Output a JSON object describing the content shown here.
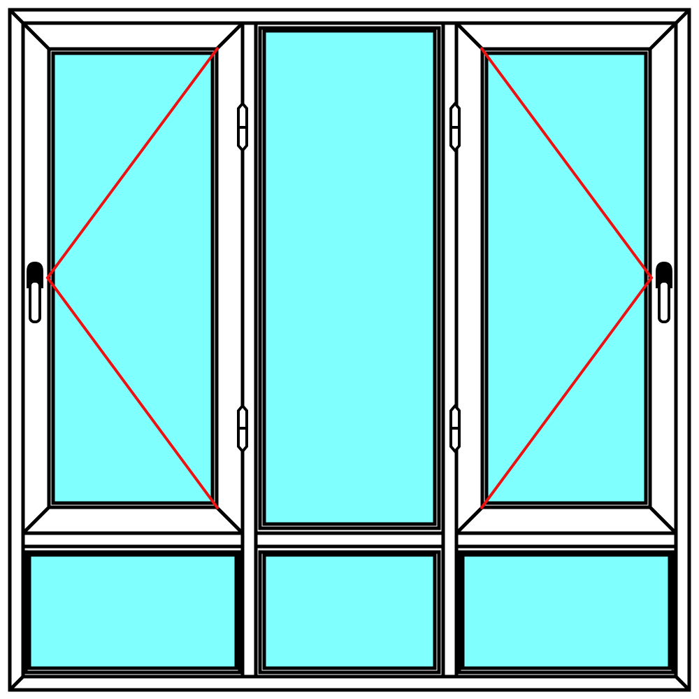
{
  "diagram": {
    "type": "window-frame-drawing",
    "colors": {
      "frame": "#ffffff",
      "outline": "#000000",
      "glass": "#80ffff",
      "opening_indicator": "#ee1111"
    },
    "sashes": [
      {
        "id": "left",
        "type": "casement",
        "hinge_side": "right",
        "handle_side": "left"
      },
      {
        "id": "center",
        "type": "fixed"
      },
      {
        "id": "right",
        "type": "casement",
        "hinge_side": "left",
        "handle_side": "right"
      }
    ],
    "lower_panels": [
      {
        "id": "lower-left",
        "type": "fixed"
      },
      {
        "id": "lower-center",
        "type": "fixed"
      },
      {
        "id": "lower-right",
        "type": "fixed"
      }
    ],
    "hardware": {
      "handle_icon": "window-handle-icon",
      "hinge_icon": "hinge-icon"
    }
  }
}
